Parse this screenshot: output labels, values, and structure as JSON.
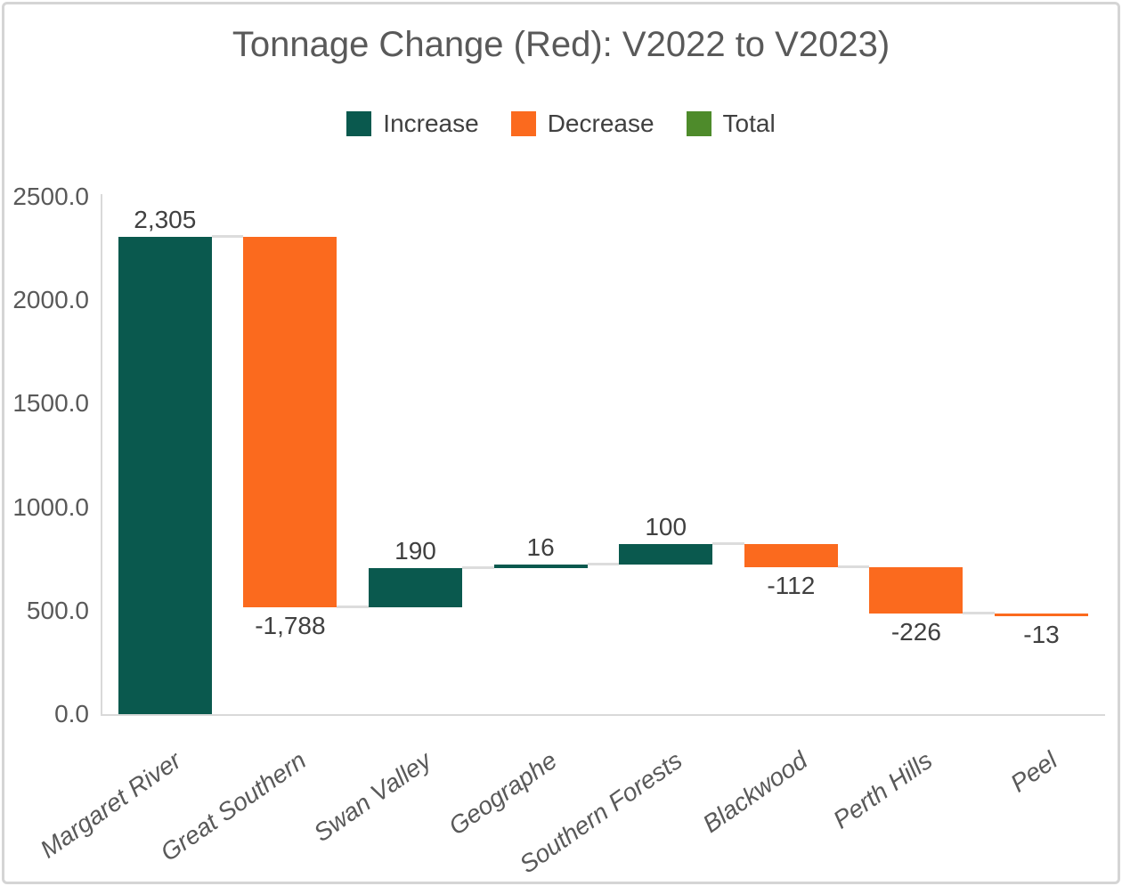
{
  "chart_data": {
    "type": "bar",
    "subtype": "waterfall",
    "title": "Tonnage Change (Red): V2022 to V2023)",
    "categories": [
      "Margaret River",
      "Great Southern",
      "Swan Valley",
      "Geographe",
      "Southern Forests",
      "Blackwood",
      "Perth Hills",
      "Peel"
    ],
    "values": [
      2305,
      -1788,
      190,
      16,
      100,
      -112,
      -226,
      -13
    ],
    "value_labels": [
      "2,305",
      "-1,788",
      "190",
      "16",
      "100",
      "-112",
      "-226",
      "-13"
    ],
    "running_totals": [
      2305,
      517,
      707,
      723,
      823,
      711,
      485,
      472
    ],
    "legend": [
      {
        "label": "Increase",
        "color": "#0a594e"
      },
      {
        "label": "Decrease",
        "color": "#fb6a1e"
      },
      {
        "label": "Total",
        "color": "#4e8b2b"
      }
    ],
    "legend_position": "top",
    "grid": false,
    "y_axis": {
      "range": [
        0,
        2500
      ],
      "ticks": [
        {
          "label": "2500.0",
          "value": 2500
        },
        {
          "label": "2000.0",
          "value": 2000
        },
        {
          "label": "1500.0",
          "value": 1500
        },
        {
          "label": "1000.0",
          "value": 1000
        },
        {
          "label": "500.0",
          "value": 500
        },
        {
          "label": "0.0",
          "value": 0
        }
      ]
    },
    "colors": {
      "increase": "#0a594e",
      "decrease": "#fb6a1e",
      "total": "#4e8b2b",
      "connector": "#dcdcdc",
      "axis_line": "#d9d9d9",
      "axis_text": "#595959",
      "label_text": "#404040",
      "title_text": "#595959"
    }
  }
}
